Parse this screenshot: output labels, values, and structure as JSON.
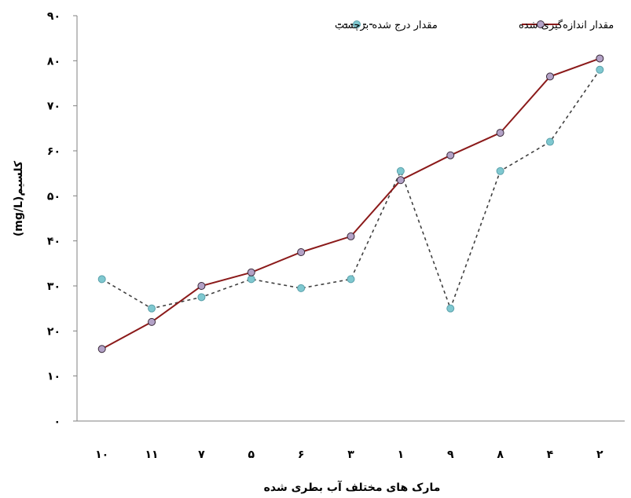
{
  "chart_data": {
    "type": "line",
    "xlabel": "مارک های مختلف آب بطری شده",
    "ylabel": "کلسیم(mg/L)",
    "ylim": [
      0,
      90
    ],
    "y_ticks": [
      "۰",
      "۱۰",
      "۲۰",
      "۳۰",
      "۴۰",
      "۵۰",
      "۶۰",
      "۷۰",
      "۸۰",
      "۹۰"
    ],
    "categories": [
      "۱۰",
      "۱۱",
      "۷",
      "۵",
      "۶",
      "۳",
      "۱",
      "۹",
      "۸",
      "۴",
      "۲"
    ],
    "legend_position": "top-right",
    "grid": false,
    "series": [
      {
        "name": "مقدار اندازه‌گیری شده",
        "color": "#8B1A1A",
        "marker_color": "#B3A2C7",
        "style": "solid",
        "values": [
          16,
          22,
          30,
          33,
          37.5,
          41,
          53.5,
          59,
          64,
          76.5,
          80.5
        ]
      },
      {
        "name": "مقدار درج شده برچسب",
        "color": "#404040",
        "marker_color": "#7FC8D0",
        "style": "dashed",
        "values": [
          31.5,
          25,
          27.5,
          31.5,
          29.5,
          31.5,
          55.5,
          25,
          55.5,
          62,
          78
        ]
      }
    ]
  }
}
